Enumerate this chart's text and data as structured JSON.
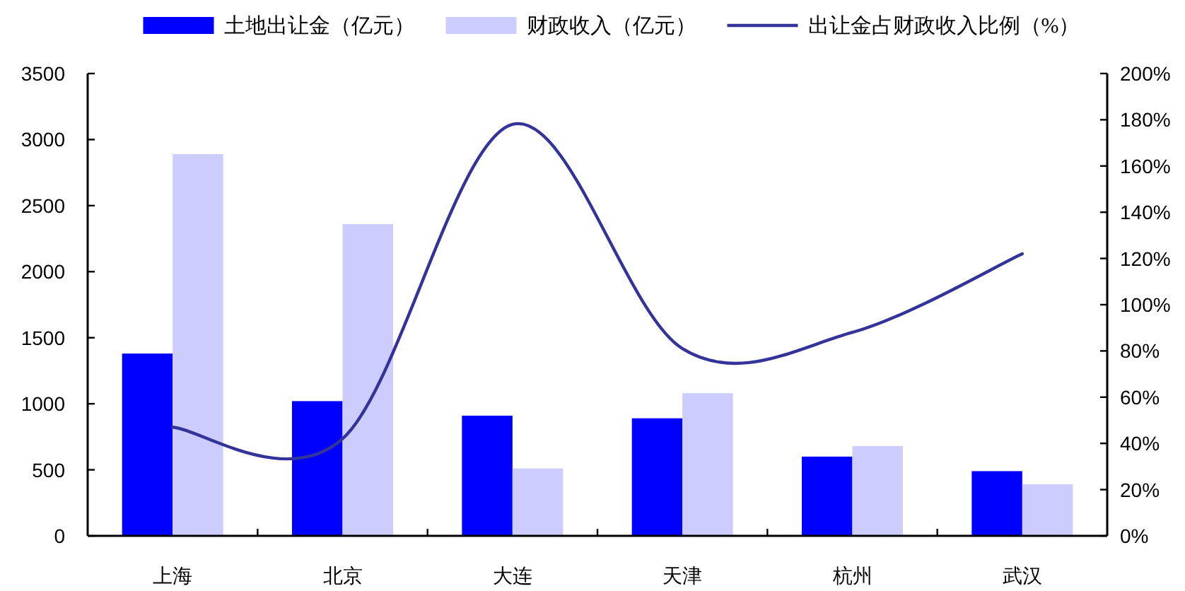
{
  "chart_data": {
    "type": "bar",
    "categories": [
      "上海",
      "北京",
      "大连",
      "天津",
      "杭州",
      "武汉"
    ],
    "series": [
      {
        "name": "土地出让金（亿元）",
        "color": "#0000ff",
        "values": [
          1380,
          1020,
          910,
          890,
          600,
          490
        ]
      },
      {
        "name": "财政收入（亿元）",
        "color": "#ccccff",
        "values": [
          2890,
          2360,
          510,
          1080,
          680,
          390
        ]
      },
      {
        "name": "出让金占财政收入比例（%）",
        "type": "line",
        "axis": "y2",
        "color": "#333399",
        "values": [
          47,
          42,
          178,
          81,
          88,
          122
        ]
      }
    ],
    "ylim": [
      0,
      3500
    ],
    "yticks": [
      0,
      500,
      1000,
      1500,
      2000,
      2500,
      3000,
      3500
    ],
    "y2lim": [
      0,
      200
    ],
    "y2ticks": [
      {
        "value": 0,
        "label": "0%"
      },
      {
        "value": 20,
        "label": "20%"
      },
      {
        "value": 40,
        "label": "40%"
      },
      {
        "value": 60,
        "label": "60%"
      },
      {
        "value": 80,
        "label": "80%"
      },
      {
        "value": 100,
        "label": "100%"
      },
      {
        "value": 120,
        "label": "120%"
      },
      {
        "value": 140,
        "label": "140%"
      },
      {
        "value": 160,
        "label": "160%"
      },
      {
        "value": 180,
        "label": "180%"
      },
      {
        "value": 200,
        "label": "200%"
      }
    ],
    "legend": "top",
    "line_style": "solid"
  }
}
